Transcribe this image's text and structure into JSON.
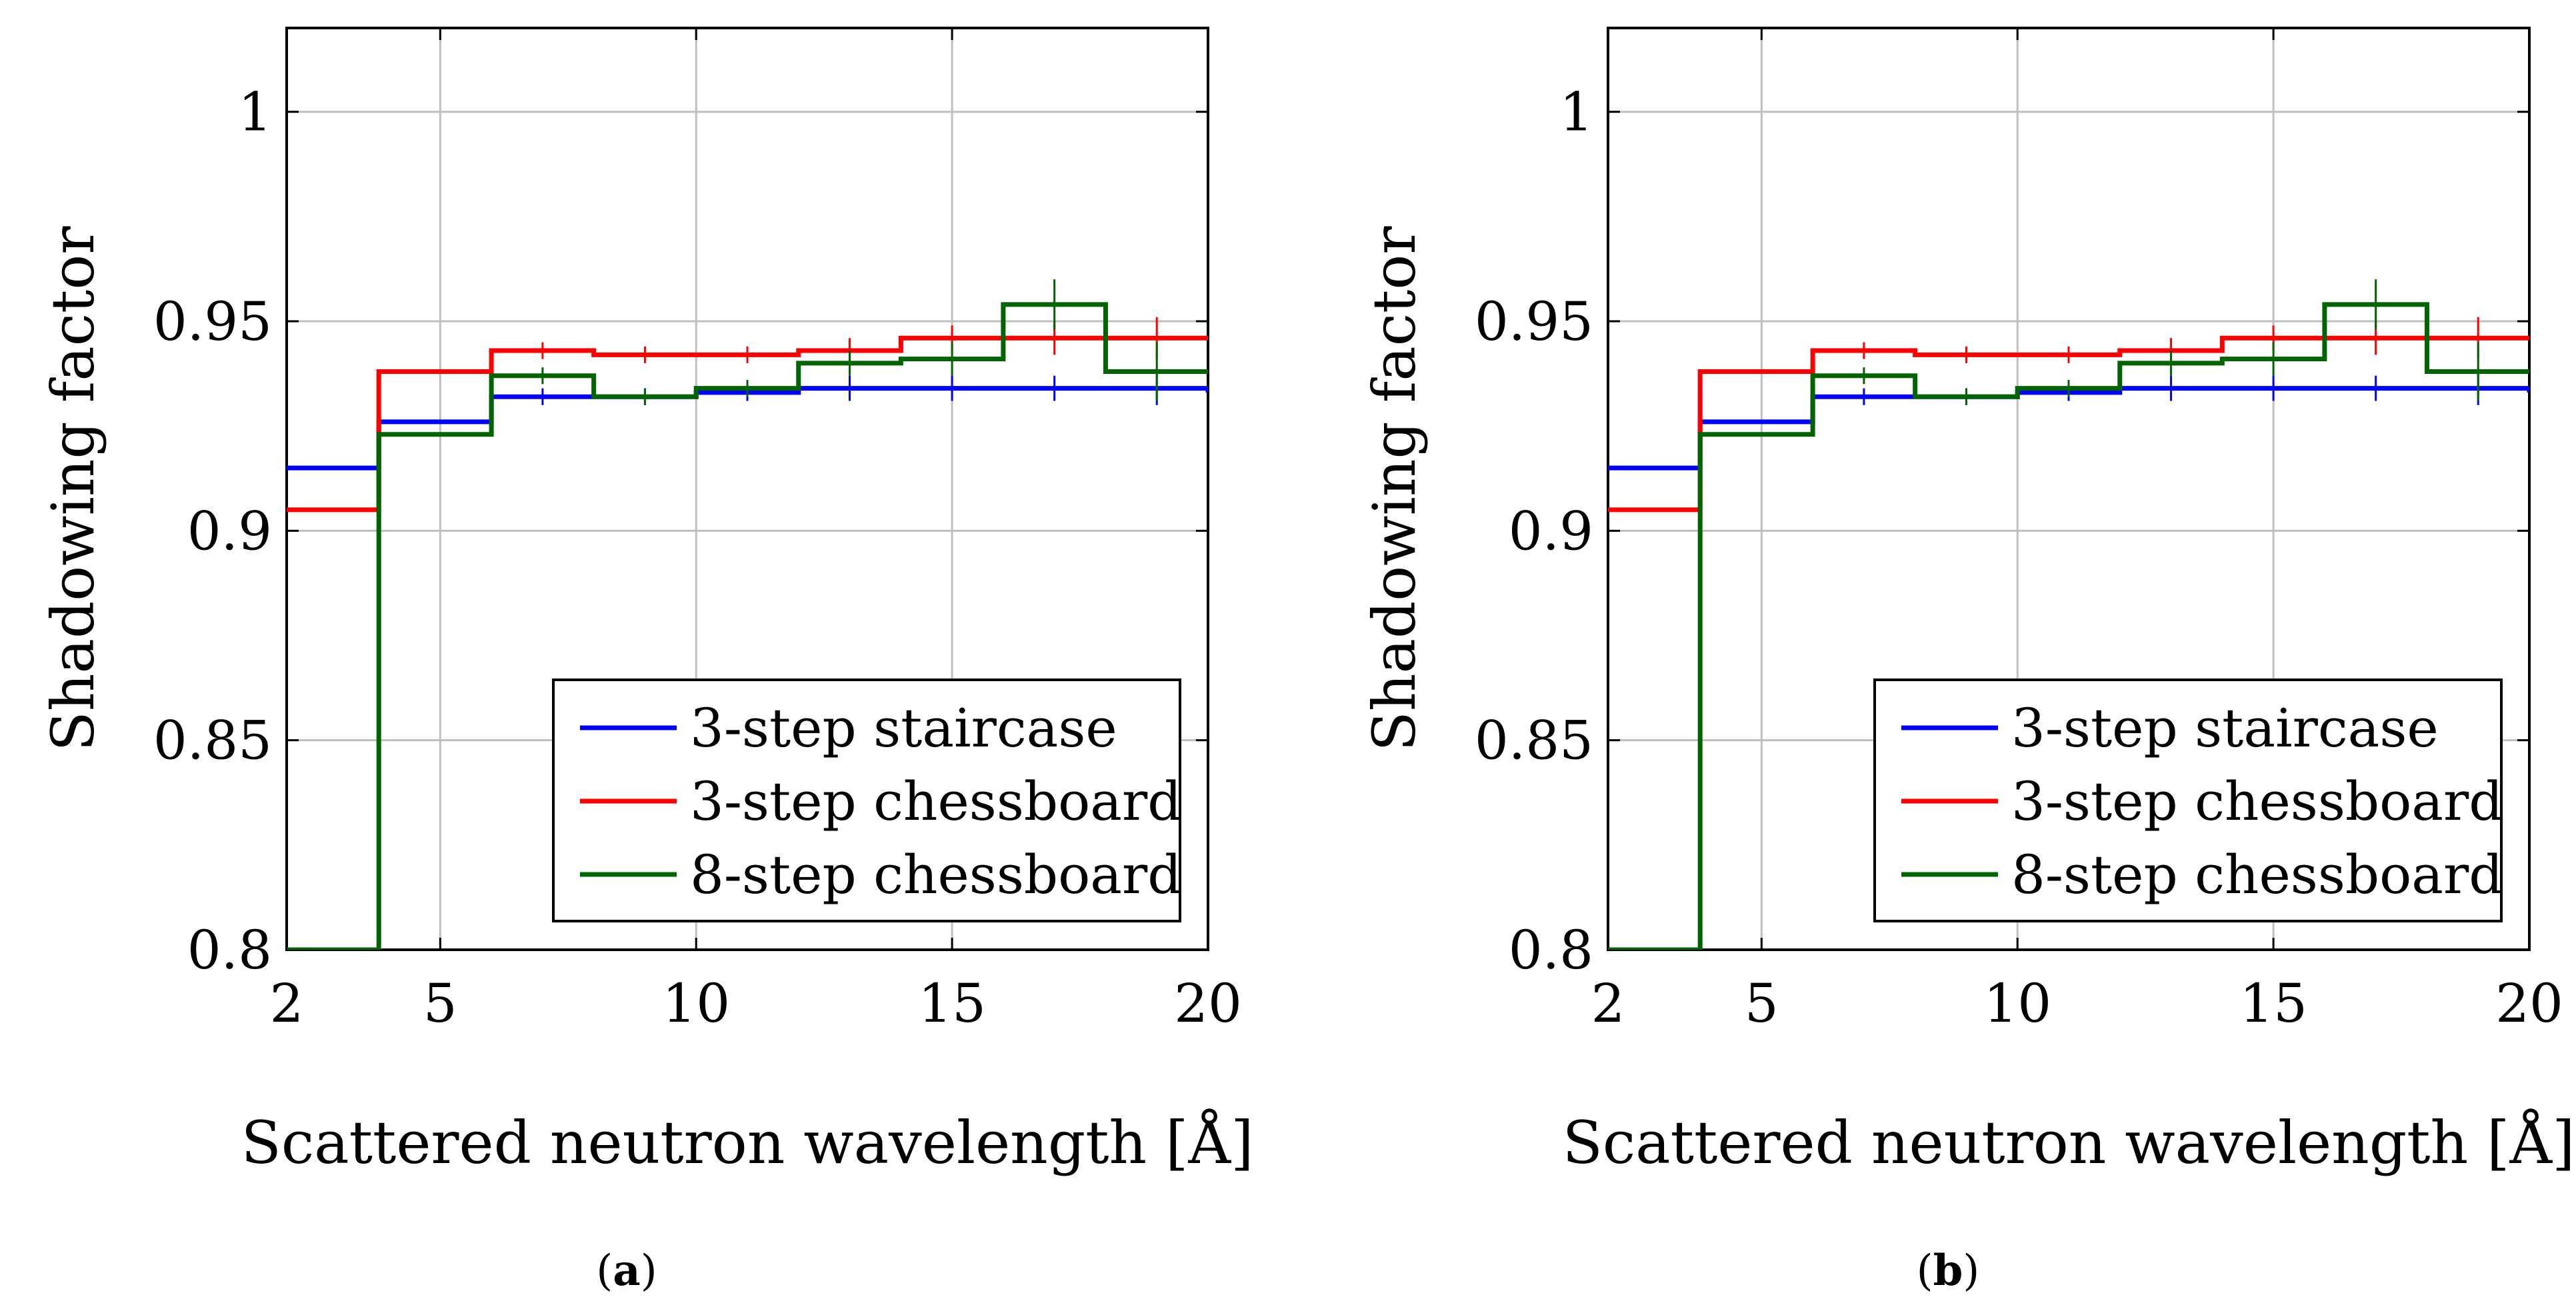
{
  "colors": {
    "staircase3": "#0000ff",
    "chessboard3": "#ff0000",
    "chessboard8": "#006400",
    "grid": "#bfbfbf",
    "axis": "#000000"
  },
  "chart_data": [
    {
      "panel": "a",
      "caption_label": "a",
      "type": "line",
      "xlabel": "Scattered neutron wavelength [Å]",
      "ylabel": "Shadowing factor",
      "xlim": [
        2,
        20
      ],
      "ylim": [
        0.8,
        1.02
      ],
      "xticks": [
        2,
        5,
        10,
        15,
        20
      ],
      "xtick_labels": [
        "2",
        "5",
        "10",
        "15",
        "20"
      ],
      "yticks": [
        0.8,
        0.85,
        0.9,
        0.95,
        1
      ],
      "ytick_labels": [
        "0.8",
        "0.85",
        "0.9",
        "0.95",
        "1"
      ],
      "grid": true,
      "legend_position": "bottom-right",
      "step": true,
      "series": [
        {
          "name": "3-step staircase",
          "color_key": "staircase3",
          "x_edges": [
            2,
            3.8,
            6,
            8,
            10,
            12,
            14,
            16,
            18,
            20
          ],
          "values": [
            0.915,
            0.926,
            0.932,
            0.932,
            0.933,
            0.934,
            0.934,
            0.934,
            0.934,
            0.933
          ],
          "errors": [
            0,
            0,
            0.002,
            0.002,
            0.002,
            0.003,
            0.003,
            0.003,
            0.004,
            0.004
          ]
        },
        {
          "name": "3-step chessboard",
          "color_key": "chessboard3",
          "x_edges": [
            2,
            3.8,
            6,
            8,
            10,
            12,
            14,
            16,
            18,
            20
          ],
          "values": [
            0.905,
            0.938,
            0.943,
            0.942,
            0.942,
            0.943,
            0.946,
            0.946,
            0.946,
            0.946
          ],
          "errors": [
            0,
            0,
            0.002,
            0.002,
            0.002,
            0.003,
            0.003,
            0.004,
            0.005,
            0.006
          ]
        },
        {
          "name": "8-step chessboard",
          "color_key": "chessboard8",
          "x_edges": [
            2,
            3.8,
            6,
            8,
            10,
            12,
            14,
            16,
            18,
            20
          ],
          "values": [
            0.8,
            0.923,
            0.937,
            0.932,
            0.934,
            0.94,
            0.941,
            0.954,
            0.938,
            0.938
          ],
          "errors": [
            0,
            0,
            0.002,
            0.002,
            0.002,
            0.003,
            0.004,
            0.006,
            0.007,
            0.008
          ]
        }
      ]
    },
    {
      "panel": "b",
      "caption_label": "b",
      "type": "line",
      "xlabel": "Scattered neutron wavelength [Å]",
      "ylabel": "Shadowing factor",
      "xlim": [
        2,
        20
      ],
      "ylim": [
        0.8,
        1.02
      ],
      "xticks": [
        2,
        5,
        10,
        15,
        20
      ],
      "xtick_labels": [
        "2",
        "5",
        "10",
        "15",
        "20"
      ],
      "yticks": [
        0.8,
        0.85,
        0.9,
        0.95,
        1
      ],
      "ytick_labels": [
        "0.8",
        "0.85",
        "0.9",
        "0.95",
        "1"
      ],
      "grid": true,
      "legend_position": "bottom-right",
      "step": true,
      "series": [
        {
          "name": "3-step staircase",
          "color_key": "staircase3",
          "x_edges": [
            2,
            3.8,
            6,
            8,
            10,
            12,
            14,
            16,
            18,
            20
          ],
          "values": [
            0.915,
            0.926,
            0.932,
            0.932,
            0.933,
            0.934,
            0.934,
            0.934,
            0.934,
            0.933
          ],
          "errors": [
            0,
            0,
            0.002,
            0.002,
            0.002,
            0.003,
            0.003,
            0.003,
            0.004,
            0.004
          ]
        },
        {
          "name": "3-step chessboard",
          "color_key": "chessboard3",
          "x_edges": [
            2,
            3.8,
            6,
            8,
            10,
            12,
            14,
            16,
            18,
            20
          ],
          "values": [
            0.905,
            0.938,
            0.943,
            0.942,
            0.942,
            0.943,
            0.946,
            0.946,
            0.946,
            0.946
          ],
          "errors": [
            0,
            0,
            0.002,
            0.002,
            0.002,
            0.003,
            0.003,
            0.004,
            0.005,
            0.006
          ]
        },
        {
          "name": "8-step chessboard",
          "color_key": "chessboard8",
          "x_edges": [
            2,
            3.8,
            6,
            8,
            10,
            12,
            14,
            16,
            18,
            20
          ],
          "values": [
            0.8,
            0.923,
            0.937,
            0.932,
            0.934,
            0.94,
            0.941,
            0.954,
            0.938,
            0.938
          ],
          "errors": [
            0,
            0,
            0.002,
            0.002,
            0.002,
            0.003,
            0.004,
            0.006,
            0.007,
            0.008
          ]
        }
      ]
    }
  ]
}
